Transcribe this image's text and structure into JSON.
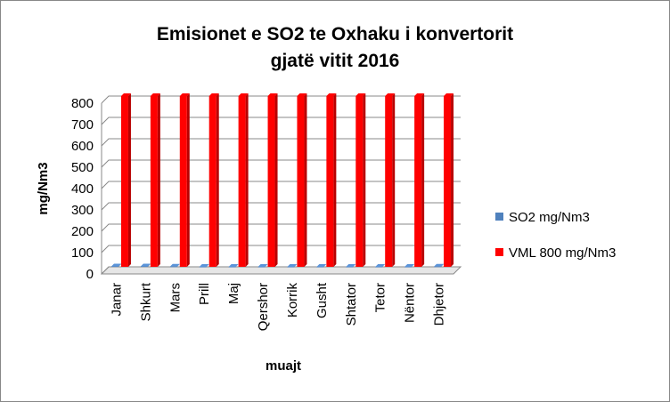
{
  "chart_data": {
    "type": "bar",
    "title_line1": "Emisionet e SO2 te Oxhaku i konvertorit",
    "title_line2": "gjatë vitit 2016",
    "xlabel": "muajt",
    "ylabel": "mg/Nm3",
    "ylim": [
      0,
      800
    ],
    "yticks": [
      0,
      100,
      200,
      300,
      400,
      500,
      600,
      700,
      800
    ],
    "categories": [
      "Janar",
      "Shkurt",
      "Mars",
      "Prill",
      "Maj",
      "Qershor",
      "Korrik",
      "Gusht",
      "Shtator",
      "Tetor",
      "Nëntor",
      "Dhjetor"
    ],
    "series": [
      {
        "name": "SO2 mg/Nm3",
        "color": "#4F81BD",
        "values": [
          2,
          2,
          1,
          0,
          0,
          0,
          0,
          0,
          0,
          0,
          0,
          1
        ]
      },
      {
        "name": "VML 800 mg/Nm3",
        "color": "#FF0000",
        "values": [
          800,
          800,
          800,
          800,
          800,
          800,
          800,
          800,
          800,
          800,
          800,
          800
        ]
      }
    ],
    "grid": true,
    "legend": "right",
    "style": "3d-clustered-column"
  }
}
